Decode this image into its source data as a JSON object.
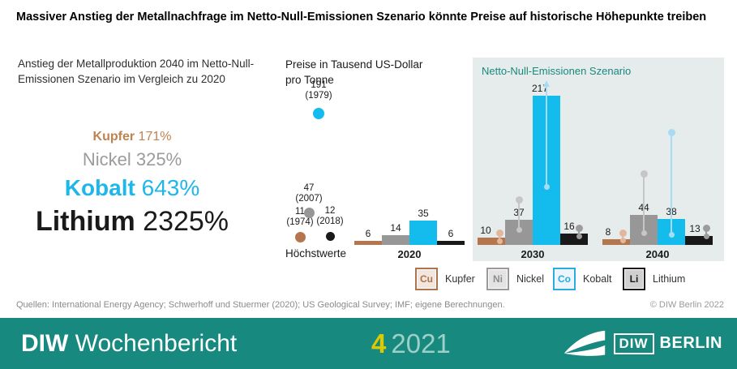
{
  "header": {
    "title": "Massiver Anstieg der Metallnachfrage im Netto-Null-Emissionen Szenario könnte Preise auf historische Höhepunkte treiben"
  },
  "production_increase": {
    "heading": "Anstieg der Metallproduktion 2040 im Netto-Null-Emissionen Szenario im Vergleich zu 2020",
    "items": [
      {
        "metal": "Kupfer",
        "value": "171%",
        "color": "#bf8350"
      },
      {
        "metal": "Nickel",
        "value": "325%",
        "color": "#9b9b9b"
      },
      {
        "metal": "Kobalt",
        "value": "643%",
        "color": "#1fb7ea"
      },
      {
        "metal": "Lithium",
        "value": "2325%",
        "color": "#1a1a1a"
      }
    ]
  },
  "chart_data": {
    "type": "bar",
    "title": "Preise in Tausend US-Dollar pro Tonne",
    "categories": [
      "2020",
      "2030",
      "2040"
    ],
    "series": [
      {
        "name": "Kupfer",
        "color": "#b5764d",
        "values": [
          6,
          10,
          8
        ]
      },
      {
        "name": "Nickel",
        "color": "#979797",
        "values": [
          14,
          37,
          44
        ]
      },
      {
        "name": "Kobalt",
        "color": "#14bcee",
        "values": [
          35,
          217,
          38
        ]
      },
      {
        "name": "Lithium",
        "color": "#191919",
        "values": [
          6,
          16,
          13
        ]
      }
    ],
    "hoechstwerte": {
      "label": "Höchstwerte",
      "items": [
        {
          "metal": "Kupfer",
          "value": 11,
          "year": "(1974)"
        },
        {
          "metal": "Nickel",
          "value": 47,
          "year": "(2007)"
        },
        {
          "metal": "Kobalt",
          "value": 191,
          "year": "(1979)"
        },
        {
          "metal": "Lithium",
          "value": 12,
          "year": "(2018)"
        }
      ]
    },
    "scenario_box_label": "Netto-Null-Emissionen Szenario",
    "scenario_categories": [
      "2030",
      "2040"
    ],
    "ylim": [
      0,
      230
    ],
    "grid": false,
    "value_labels": true,
    "legend_position": "bottom"
  },
  "legend": {
    "items": [
      {
        "symbol": "Cu",
        "label": "Kupfer",
        "border": "#a9744f",
        "fill": "#f4e6dc",
        "text": "#a9744f"
      },
      {
        "symbol": "Ni",
        "label": "Nickel",
        "border": "#9a9a9a",
        "fill": "#e3e3e3",
        "text": "#8d8d8d"
      },
      {
        "symbol": "Co",
        "label": "Kobalt",
        "border": "#29abe2",
        "fill": "#eaf7fd",
        "text": "#29abe2"
      },
      {
        "symbol": "Li",
        "label": "Lithium",
        "border": "#1a1a1a",
        "fill": "#d0d0d0",
        "text": "#1a1a1a"
      }
    ]
  },
  "sources": {
    "text": "Quellen: International Energy Agency; Schwerhoff und Stuermer (2020); US Geological Survey; IMF; eigene Berechnungen.",
    "copyright": "© DIW Berlin 2022"
  },
  "footer": {
    "brand_bold": "DIW",
    "brand_light": "Wochenbericht",
    "issue": "4",
    "year": "2021",
    "logo_diw": "DIW",
    "logo_berlin": "BERLIN",
    "bar_color": "#18897e",
    "issue_color": "#ddc900"
  }
}
